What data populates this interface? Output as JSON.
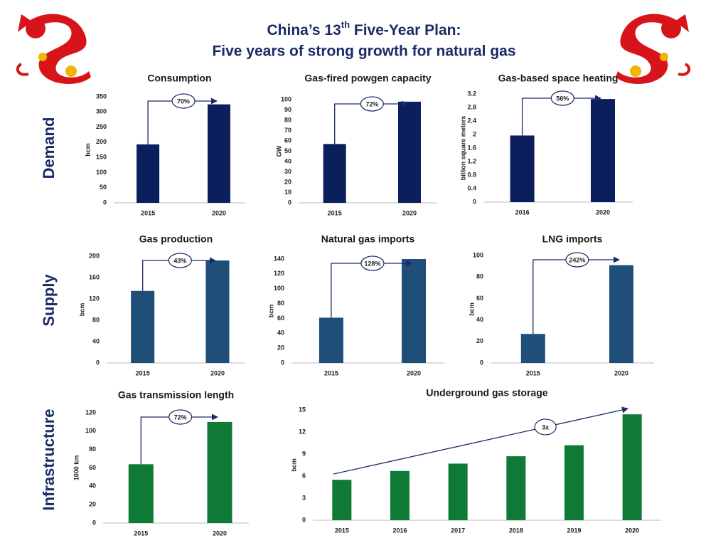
{
  "header": {
    "title_prefix": "China’s 13",
    "title_sup": "th",
    "title_suffix": " Five-Year Plan:",
    "title_line2": "Five years of strong growth for natural gas"
  },
  "row_labels": [
    "Demand",
    "Supply",
    "Infrastructure"
  ],
  "chart_data": [
    {
      "type": "bar",
      "title": "Consumption",
      "ylabel": "bcm",
      "categories": [
        "2015",
        "2020"
      ],
      "values": [
        193,
        325
      ],
      "color": "#0b1f5c",
      "ylim": [
        0,
        350
      ],
      "yticks": [
        0,
        50,
        100,
        150,
        200,
        250,
        300,
        350
      ],
      "annotation": "70%"
    },
    {
      "type": "bar",
      "title": "Gas-fired powgen capacity",
      "ylabel": "GW",
      "categories": [
        "2015",
        "2020"
      ],
      "values": [
        57,
        98
      ],
      "color": "#0b1f5c",
      "ylim": [
        0,
        100
      ],
      "yticks": [
        0,
        10,
        20,
        30,
        40,
        50,
        60,
        70,
        80,
        90,
        100
      ],
      "annotation": "72%"
    },
    {
      "type": "bar",
      "title": "Gas-based space heating",
      "ylabel": "billion square meters",
      "categories": [
        "2016",
        "2020"
      ],
      "values": [
        1.97,
        3.05
      ],
      "color": "#0b1f5c",
      "ylim": [
        0,
        3.2
      ],
      "yticks": [
        0,
        0.4,
        0.8,
        1.2,
        1.6,
        2,
        2.4,
        2.8,
        3.2
      ],
      "annotation": "56%"
    },
    {
      "type": "bar",
      "title": "Gas production",
      "ylabel": "bcm",
      "categories": [
        "2015",
        "2020"
      ],
      "values": [
        135,
        192
      ],
      "color": "#1f4e79",
      "ylim": [
        0,
        200
      ],
      "yticks": [
        0,
        40,
        80,
        120,
        160,
        200
      ],
      "annotation": "43%"
    },
    {
      "type": "bar",
      "title": "Natural gas imports",
      "ylabel": "bcm",
      "categories": [
        "2015",
        "2020"
      ],
      "values": [
        61,
        140
      ],
      "color": "#1f4e79",
      "ylim": [
        0,
        140
      ],
      "yticks": [
        0,
        20,
        40,
        60,
        80,
        100,
        120,
        140
      ],
      "annotation": "128%"
    },
    {
      "type": "bar",
      "title": "LNG imports",
      "ylabel": "bcm",
      "categories": [
        "2015",
        "2020"
      ],
      "values": [
        27,
        91
      ],
      "color": "#1f4e79",
      "ylim": [
        0,
        100
      ],
      "yticks": [
        0,
        20,
        40,
        60,
        80,
        100
      ],
      "annotation": "242%"
    },
    {
      "type": "bar",
      "title": "Gas transmission length",
      "ylabel": "1000 km",
      "categories": [
        "2015",
        "2020"
      ],
      "values": [
        64,
        110
      ],
      "color": "#0e7a35",
      "ylim": [
        0,
        120
      ],
      "yticks": [
        0,
        20,
        40,
        60,
        80,
        100,
        120
      ],
      "annotation": "72%"
    },
    {
      "type": "bar",
      "title": "Underground gas storage",
      "ylabel": "bcm",
      "categories": [
        "2015",
        "2016",
        "2017",
        "2018",
        "2019",
        "2020"
      ],
      "values": [
        5.5,
        6.7,
        7.7,
        8.7,
        10.2,
        14.4
      ],
      "color": "#0e7a35",
      "ylim": [
        0,
        15
      ],
      "yticks": [
        0,
        3,
        6,
        9,
        12,
        15
      ],
      "annotation": "3x"
    }
  ]
}
